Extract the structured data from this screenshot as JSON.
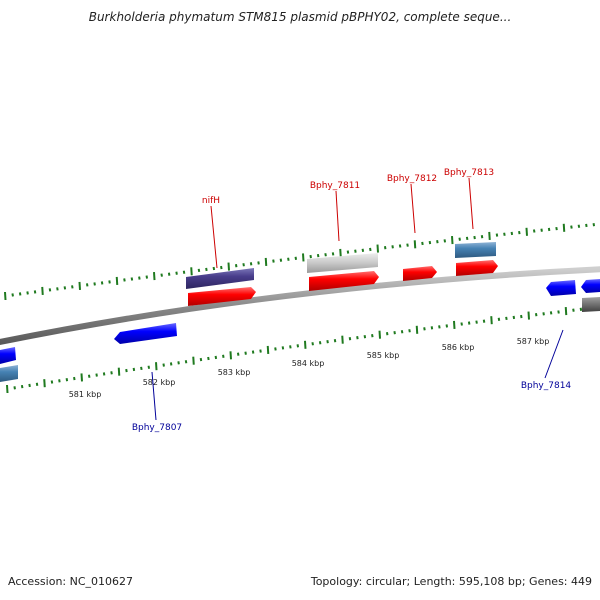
{
  "title": "Burkholderia phymatum STM815 plasmid pBPHY02, complete seque...",
  "footer": {
    "accession": "Accession: NC_010627",
    "summary": "Topology: circular; Length: 595,108 bp; Genes: 449"
  },
  "colors": {
    "backbone": "#8a8a8a",
    "tick": "#1f7a1f",
    "label_forward": "#cc0000",
    "label_reverse": "#000099"
  },
  "scale": {
    "start_kbp": 580.2,
    "ticks_per_kbp": 10,
    "labels": [
      {
        "kbp": 581,
        "text": "581 kbp"
      },
      {
        "kbp": 582,
        "text": "582 kbp"
      },
      {
        "kbp": 583,
        "text": "583 kbp"
      },
      {
        "kbp": 584,
        "text": "584 kbp"
      },
      {
        "kbp": 585,
        "text": "585 kbp"
      },
      {
        "kbp": 586,
        "text": "586 kbp"
      },
      {
        "kbp": 587,
        "text": "587 kbp"
      }
    ]
  },
  "gene_labels": [
    {
      "text": "nifH",
      "strand": "forward"
    },
    {
      "text": "Bphy_7811",
      "strand": "forward"
    },
    {
      "text": "Bphy_7812",
      "strand": "forward"
    },
    {
      "text": "Bphy_7813",
      "strand": "forward"
    },
    {
      "text": "Bphy_7807",
      "strand": "reverse"
    },
    {
      "text": "Bphy_7814",
      "strand": "reverse"
    }
  ]
}
